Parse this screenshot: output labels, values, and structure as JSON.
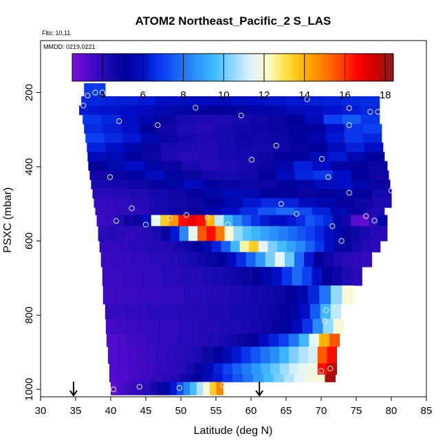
{
  "chart_data": {
    "type": "heatmap",
    "title": "ATOM2 Northeast_Pacific_2 S_LAS",
    "flights_note": "Flts: 10,11",
    "date_note": "MMDD: 0219,0221",
    "xlabel": "Latitude (deg N)",
    "ylabel": "PSXC (mbar)",
    "xlim": [
      30,
      85
    ],
    "ylim": [
      1020,
      60
    ],
    "y_reversed": true,
    "x_ticks": [
      30,
      35,
      40,
      45,
      50,
      55,
      60,
      65,
      70,
      75,
      80,
      85
    ],
    "y_ticks": [
      200,
      400,
      600,
      800,
      1000
    ],
    "colorbar": {
      "range": [
        2.5,
        18.4
      ],
      "ticks": [
        4,
        6,
        8,
        10,
        12,
        14,
        16,
        18
      ],
      "colors": [
        "#7a0fd6",
        "#4a0acb",
        "#1a0ab0",
        "#000096",
        "#0010c8",
        "#0a3cf0",
        "#1b6af5",
        "#2b94fa",
        "#40bcff",
        "#8fd8ff",
        "#dff4ff",
        "#fffcc8",
        "#ffe040",
        "#ffb400",
        "#ff8200",
        "#ff4800",
        "#ff0000",
        "#cc0000",
        "#8b1a1a"
      ]
    },
    "arrow_latitudes": [
      34.7,
      61.2
    ],
    "grid": false,
    "legend": "colorbar at top inside plot",
    "rows": [
      {
        "p": [
          175,
          210
        ],
        "lat": [
          36.2,
          39.2
        ],
        "vals": [
          6.8,
          6.9
        ]
      },
      {
        "p": [
          210,
          235
        ],
        "lat": [
          35.8,
          78.3
        ],
        "vals": [
          6.5,
          6.4,
          6.3,
          6.2,
          6.0,
          5.9,
          5.8,
          5.8,
          5.9,
          6.0,
          6.1,
          6.2,
          6.3,
          6.4,
          6.5,
          6.6
        ]
      },
      {
        "p": [
          235,
          260
        ],
        "lat": [
          35.5,
          78.3
        ],
        "vals": [
          6.2,
          6.1,
          6.0,
          5.8,
          5.6,
          5.4,
          5.3,
          5.2,
          5.3,
          5.4,
          5.5,
          5.7,
          5.9,
          6.1,
          6.3,
          6.5
        ]
      },
      {
        "p": [
          260,
          285
        ],
        "lat": [
          36.0,
          78.3
        ],
        "vals": [
          6.8,
          6.5,
          6.0,
          5.5,
          4.8,
          4.3,
          4.2,
          4.2,
          4.3,
          4.5,
          4.8,
          5.2,
          5.8,
          7.0,
          7.5,
          6.8
        ]
      },
      {
        "p": [
          285,
          310
        ],
        "lat": [
          36.2,
          78.6
        ],
        "vals": [
          6.6,
          6.3,
          6.0,
          5.2,
          4.5,
          4.2,
          4.1,
          4.3,
          4.5,
          4.6,
          4.8,
          5.0,
          5.3,
          6.0,
          6.8,
          7.0
        ]
      },
      {
        "p": [
          310,
          335
        ],
        "lat": [
          36.4,
          78.6
        ],
        "vals": [
          7.0,
          6.6,
          6.2,
          5.6,
          4.8,
          4.4,
          4.2,
          4.3,
          4.6,
          4.5,
          4.7,
          5.0,
          5.5,
          6.2,
          6.8,
          6.5
        ]
      },
      {
        "p": [
          335,
          360
        ],
        "lat": [
          36.6,
          78.8
        ],
        "vals": [
          6.4,
          6.0,
          5.5,
          4.8,
          4.3,
          4.2,
          4.1,
          4.3,
          4.5,
          4.4,
          4.6,
          4.9,
          5.2,
          5.8,
          6.4,
          6.0
        ]
      },
      {
        "p": [
          360,
          385
        ],
        "lat": [
          36.7,
          79.0
        ],
        "vals": [
          5.8,
          5.6,
          5.3,
          4.7,
          4.2,
          4.0,
          4.1,
          4.3,
          4.4,
          4.6,
          5.0,
          5.3,
          5.8,
          6.2,
          5.6,
          5.2
        ]
      },
      {
        "p": [
          385,
          410
        ],
        "lat": [
          36.8,
          79.4
        ],
        "vals": [
          5.2,
          5.6,
          6.0,
          5.4,
          4.8,
          4.3,
          4.1,
          4.2,
          4.4,
          4.8,
          5.5,
          6.4,
          6.0,
          5.4,
          5.0,
          4.7
        ]
      },
      {
        "p": [
          410,
          435
        ],
        "lat": [
          37.0,
          79.6
        ],
        "vals": [
          4.5,
          4.8,
          5.3,
          5.8,
          5.3,
          4.8,
          4.4,
          4.3,
          4.5,
          5.0,
          5.8,
          6.5,
          6.8,
          6.0,
          5.2,
          4.6
        ]
      },
      {
        "p": [
          435,
          460
        ],
        "lat": [
          37.2,
          79.8
        ],
        "vals": [
          4.3,
          4.4,
          4.6,
          4.9,
          5.4,
          5.8,
          5.3,
          4.8,
          4.6,
          4.7,
          5.0,
          5.4,
          5.8,
          6.0,
          5.5,
          4.8
        ]
      },
      {
        "p": [
          460,
          485
        ],
        "lat": [
          37.4,
          80.0
        ],
        "vals": [
          4.0,
          4.1,
          4.2,
          4.4,
          4.6,
          5.0,
          5.4,
          5.8,
          5.6,
          5.2,
          5.0,
          4.8,
          5.0,
          5.4,
          5.0,
          4.4
        ]
      },
      {
        "p": [
          485,
          510
        ],
        "lat": [
          37.6,
          80.0
        ],
        "vals": [
          3.8,
          3.9,
          4.1,
          4.3,
          4.5,
          4.8,
          5.2,
          5.6,
          6.2,
          6.6,
          6.4,
          5.8,
          5.5,
          5.0,
          4.6,
          4.2
        ]
      },
      {
        "p": [
          510,
          530
        ],
        "lat": [
          37.8,
          79.0
        ],
        "vals": [
          3.8,
          3.9,
          4.0,
          4.3,
          4.6,
          5.0,
          5.5,
          6.0,
          6.6,
          7.4,
          7.8,
          7.2,
          6.4,
          5.6,
          4.8,
          4.2
        ]
      },
      {
        "p": [
          530,
          560
        ],
        "lat": [
          38.0,
          79.4
        ],
        "vals": [
          3.6,
          3.8,
          4.2,
          4.6,
          4.8,
          6.0,
          11.5,
          13.5,
          14.5,
          16.5,
          17.0,
          16.5,
          14.0,
          11.0,
          9.5,
          8.5,
          7.5,
          6.8,
          6.3,
          6.0,
          6.0,
          6.2,
          6.6,
          7.4,
          7.0,
          6.5,
          5.5,
          4.5,
          3.2,
          3.0,
          4.0,
          5.5
        ]
      },
      {
        "p": [
          560,
          600
        ],
        "lat": [
          38.2,
          79.4
        ],
        "vals": [
          4.0,
          4.1,
          4.0,
          3.9,
          4.0,
          4.1,
          4.3,
          4.8,
          6.2,
          8.5,
          11.5,
          15.5,
          16.5,
          15.0,
          12.0,
          10.5,
          9.8,
          9.4,
          9.0,
          8.6,
          8.2,
          7.8,
          7.4,
          7.0,
          6.5,
          6.0,
          5.5,
          5.0,
          4.6,
          4.3,
          4.1,
          4.0
        ]
      },
      {
        "p": [
          600,
          630
        ],
        "lat": [
          38.4,
          78.4
        ],
        "vals": [
          3.8,
          3.8,
          3.9,
          4.0,
          4.0,
          4.1,
          4.1,
          4.2,
          4.4,
          4.6,
          5.0,
          5.6,
          6.4,
          7.6,
          9.5,
          12.5,
          13.5,
          11.5,
          10.2,
          9.6,
          9.0,
          8.4,
          7.6,
          6.8,
          6.0,
          5.4,
          4.8,
          4.4,
          4.1,
          4.0
        ]
      },
      {
        "p": [
          630,
          670
        ],
        "lat": [
          38.6,
          77.2
        ],
        "vals": [
          3.7,
          3.8,
          3.8,
          3.9,
          3.9,
          4.0,
          4.0,
          4.1,
          4.2,
          4.3,
          4.5,
          4.8,
          5.2,
          5.8,
          6.6,
          7.6,
          8.8,
          10.2,
          11.5,
          10.0,
          7.8,
          6.2,
          5.2,
          4.6,
          4.2,
          4.0,
          3.9,
          3.8
        ]
      },
      {
        "p": [
          670,
          720
        ],
        "lat": [
          38.8,
          75.8
        ],
        "vals": [
          3.7,
          3.7,
          3.8,
          3.8,
          3.9,
          3.9,
          4.0,
          4.0,
          4.1,
          4.1,
          4.2,
          4.3,
          4.4,
          4.6,
          4.8,
          5.1,
          5.5,
          6.0,
          6.8,
          7.8,
          7.0,
          6.0,
          5.2,
          4.6,
          4.2,
          4.0
        ]
      },
      {
        "p": [
          720,
          770
        ],
        "lat": [
          38.9,
          74.6
        ],
        "vals": [
          3.6,
          3.7,
          3.7,
          3.8,
          3.8,
          3.9,
          3.9,
          4.0,
          4.0,
          4.1,
          4.1,
          4.2,
          4.3,
          4.4,
          4.5,
          4.7,
          5.0,
          5.5,
          6.5,
          8.0,
          10.5,
          12.0
        ]
      },
      {
        "p": [
          770,
          810
        ],
        "lat": [
          39.2,
          72.8
        ],
        "vals": [
          3.8,
          3.8,
          3.9,
          3.9,
          4.0,
          4.0,
          4.0,
          4.1,
          4.1,
          4.1,
          4.2,
          4.2,
          4.3,
          4.3,
          4.4,
          4.5,
          4.7,
          5.0,
          5.4,
          6.0,
          7.5,
          9.5,
          11.0
        ]
      },
      {
        "p": [
          810,
          850
        ],
        "lat": [
          39.3,
          73.2
        ],
        "vals": [
          3.5,
          3.6,
          3.7,
          3.8,
          3.8,
          3.9,
          3.9,
          4.0,
          4.0,
          4.1,
          4.1,
          4.2,
          4.2,
          4.3,
          4.4,
          4.6,
          4.9,
          5.3,
          5.8,
          6.8,
          8.5,
          10.5,
          12.0
        ]
      },
      {
        "p": [
          850,
          885
        ],
        "lat": [
          39.4,
          72.6
        ],
        "vals": [
          3.3,
          3.4,
          3.6,
          3.7,
          3.8,
          3.9,
          3.9,
          4.0,
          4.0,
          4.1,
          4.2,
          4.3,
          4.5,
          4.8,
          5.2,
          5.8,
          6.4,
          7.0,
          8.0,
          9.5,
          11.5,
          14.0,
          15.5
        ]
      },
      {
        "p": [
          885,
          930
        ],
        "lat": [
          39.6,
          72.2
        ],
        "vals": [
          3.3,
          3.4,
          3.5,
          3.6,
          3.7,
          3.8,
          3.9,
          4.0,
          4.1,
          4.3,
          4.6,
          5.0,
          5.6,
          6.2,
          6.8,
          7.4,
          8.0,
          8.6,
          9.4,
          10.2,
          10.8,
          11.2,
          15.5,
          16.5
        ]
      },
      {
        "p": [
          930,
          960
        ],
        "lat": [
          39.8,
          72.2
        ],
        "vals": [
          3.3,
          3.4,
          3.5,
          3.6,
          3.7,
          3.8,
          3.9,
          4.0,
          4.3,
          4.8,
          5.6,
          6.4,
          7.0,
          7.6,
          8.2,
          8.8,
          9.4,
          10.0,
          10.6,
          11.2,
          11.6,
          11.8,
          16.5,
          17.8
        ]
      },
      {
        "p": [
          960,
          980
        ],
        "lat": [
          39.8,
          72.0
        ],
        "vals": [
          3.2,
          3.3,
          3.5,
          3.7,
          3.9,
          4.0,
          4.2,
          4.6,
          5.2,
          5.8,
          6.2,
          6.8,
          7.4,
          8.0,
          8.8,
          9.6,
          10.2,
          10.8,
          11.4,
          11.8,
          12.0,
          18.0
        ]
      },
      {
        "p": [
          980,
          1015
        ],
        "lat": [
          40.0,
          56.0
        ],
        "vals": [
          3.0,
          3.4,
          3.6,
          3.8,
          3.9,
          4.0,
          4.4,
          4.8,
          5.4,
          6.2,
          7.2,
          8.4,
          9.6,
          10.8,
          12.0,
          13.5,
          14.8
        ]
      }
    ],
    "markers": [
      {
        "lat": 36.1,
        "p": 235
      },
      {
        "lat": 36.7,
        "p": 208
      },
      {
        "lat": 37.8,
        "p": 200
      },
      {
        "lat": 38.8,
        "p": 200
      },
      {
        "lat": 52.1,
        "p": 241
      },
      {
        "lat": 58.6,
        "p": 262
      },
      {
        "lat": 68.0,
        "p": 218
      },
      {
        "lat": 74.0,
        "p": 242
      },
      {
        "lat": 77.0,
        "p": 252
      },
      {
        "lat": 78.1,
        "p": 252
      },
      {
        "lat": 41.2,
        "p": 277
      },
      {
        "lat": 46.7,
        "p": 288
      },
      {
        "lat": 74.0,
        "p": 288
      },
      {
        "lat": 63.6,
        "p": 343
      },
      {
        "lat": 60.1,
        "p": 381
      },
      {
        "lat": 70.1,
        "p": 379
      },
      {
        "lat": 39.9,
        "p": 428
      },
      {
        "lat": 71.0,
        "p": 428
      },
      {
        "lat": 74.0,
        "p": 470
      },
      {
        "lat": 80.0,
        "p": 464
      },
      {
        "lat": 43.0,
        "p": 512
      },
      {
        "lat": 64.3,
        "p": 500
      },
      {
        "lat": 66.5,
        "p": 527
      },
      {
        "lat": 76.4,
        "p": 533
      },
      {
        "lat": 40.8,
        "p": 546
      },
      {
        "lat": 45.0,
        "p": 556
      },
      {
        "lat": 48.4,
        "p": 538
      },
      {
        "lat": 50.8,
        "p": 530
      },
      {
        "lat": 53.8,
        "p": 537
      },
      {
        "lat": 56.7,
        "p": 556
      },
      {
        "lat": 71.6,
        "p": 560
      },
      {
        "lat": 77.6,
        "p": 545
      },
      {
        "lat": 72.9,
        "p": 600
      },
      {
        "lat": 70.7,
        "p": 787
      },
      {
        "lat": 70.5,
        "p": 816
      },
      {
        "lat": 70.0,
        "p": 950
      },
      {
        "lat": 71.3,
        "p": 944
      },
      {
        "lat": 40.4,
        "p": 1000
      },
      {
        "lat": 44.1,
        "p": 993
      },
      {
        "lat": 49.8,
        "p": 996
      },
      {
        "lat": 56.0,
        "p": 988
      }
    ]
  }
}
